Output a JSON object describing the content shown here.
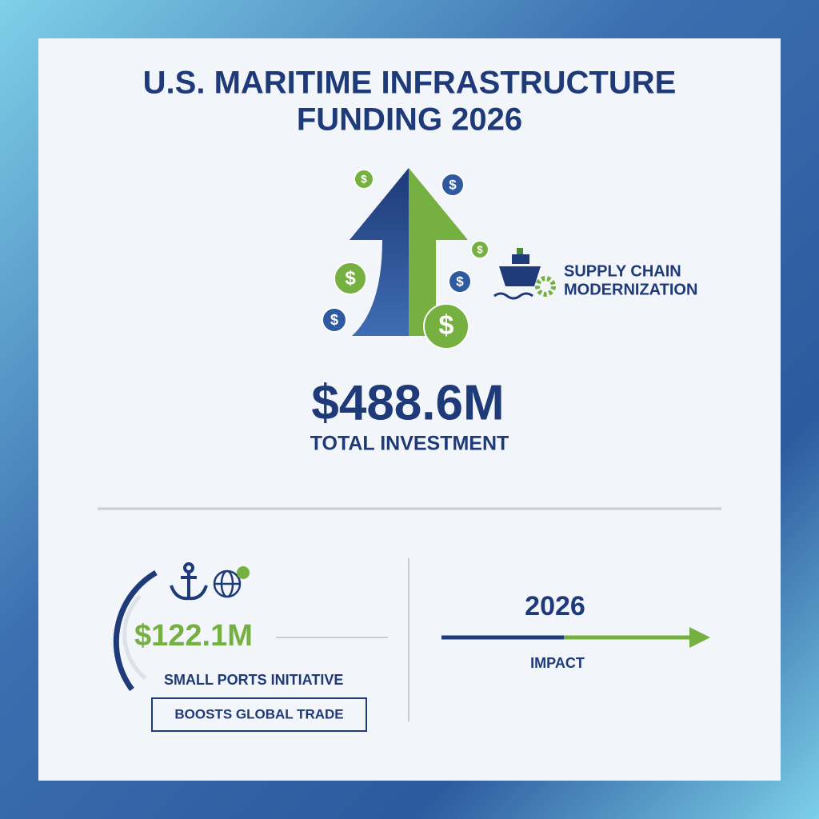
{
  "header": {
    "title_line1": "U.S. MARITIME INFRASTRUCTURE",
    "title_line2": "FUNDING 2026"
  },
  "hero": {
    "coin_symbol": "$",
    "side_label_line1": "SUPPLY CHAIN",
    "side_label_line2": "MODERNIZATION",
    "total": "$488.6M",
    "total_label": "TOTAL INVESTMENT"
  },
  "left_panel": {
    "amount": "$122.1M",
    "label": "SMALL PORTS INITIATIVE",
    "badge": "BOOSTS GLOBAL TRADE"
  },
  "right_panel": {
    "year": "2026",
    "label": "IMPACT"
  }
}
